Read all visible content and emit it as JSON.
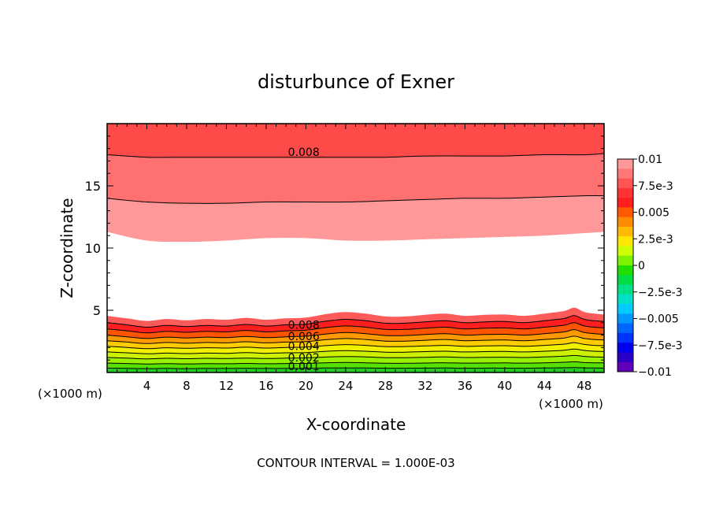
{
  "chart_data": {
    "type": "heatmap",
    "title": "disturbunce of Exner",
    "xlabel": "X-coordinate",
    "ylabel": "Z-coordinate",
    "x_unit_label_left": "(×1000 m)",
    "x_unit_label_right": "(×1000 m)",
    "footer": "CONTOUR INTERVAL = 1.000E-03",
    "xlim": [
      0,
      50
    ],
    "ylim": [
      0,
      20
    ],
    "x_ticks": [
      4,
      8,
      12,
      16,
      20,
      24,
      28,
      32,
      36,
      40,
      44,
      48
    ],
    "x_tick_labels": [
      "4",
      "8",
      "12",
      "16",
      "20",
      "24",
      "28",
      "32",
      "36",
      "40",
      "44",
      "48"
    ],
    "y_ticks": [
      5,
      10,
      15
    ],
    "y_tick_labels": [
      "5",
      "10",
      "15"
    ],
    "contour_interval": 0.001,
    "contour_labels": [
      {
        "text": "0.008",
        "x": 18.2,
        "y": 17.4
      },
      {
        "text": "0.008",
        "x": 18.2,
        "y": 3.5
      },
      {
        "text": "0.006",
        "x": 18.2,
        "y": 2.6
      },
      {
        "text": "0.004",
        "x": 18.2,
        "y": 1.8
      },
      {
        "text": "0.002",
        "x": 18.2,
        "y": 0.9
      },
      {
        "text": "0.001",
        "x": 18.2,
        "y": 0.2
      }
    ],
    "upper_band": {
      "x": [
        0,
        4,
        8,
        12,
        16,
        20,
        24,
        28,
        32,
        36,
        40,
        44,
        48,
        50
      ],
      "level_values": [
        0.01,
        0.009,
        0.008,
        0.007
      ],
      "level_heights": [
        [
          11.3,
          10.6,
          10.5,
          10.6,
          10.8,
          10.8,
          10.6,
          10.6,
          10.7,
          10.8,
          10.9,
          11.0,
          11.2,
          11.3
        ],
        [
          14.0,
          13.7,
          13.6,
          13.6,
          13.7,
          13.7,
          13.7,
          13.8,
          13.9,
          14.0,
          14.0,
          14.1,
          14.2,
          14.2
        ],
        [
          17.5,
          17.3,
          17.3,
          17.3,
          17.3,
          17.3,
          17.3,
          17.3,
          17.4,
          17.4,
          17.4,
          17.5,
          17.5,
          17.6
        ],
        [
          20,
          20,
          20,
          20,
          20,
          20,
          20,
          20,
          20,
          20,
          20,
          20,
          20,
          20
        ]
      ]
    },
    "lower_band": {
      "x": [
        0,
        2,
        4,
        6,
        8,
        10,
        12,
        14,
        16,
        18,
        20,
        22,
        24,
        26,
        28,
        30,
        32,
        34,
        36,
        38,
        40,
        42,
        44,
        46,
        47,
        48,
        49,
        50
      ],
      "level_values": [
        0.001,
        0.002,
        0.003,
        0.004,
        0.005,
        0.006,
        0.007,
        0.008,
        0.009,
        0.01
      ],
      "level_heights": [
        [
          0.35,
          0.33,
          0.31,
          0.33,
          0.31,
          0.33,
          0.32,
          0.34,
          0.32,
          0.33,
          0.33,
          0.36,
          0.37,
          0.36,
          0.34,
          0.34,
          0.35,
          0.36,
          0.34,
          0.35,
          0.35,
          0.34,
          0.36,
          0.38,
          0.4,
          0.37,
          0.36,
          0.35
        ],
        [
          0.75,
          0.72,
          0.68,
          0.71,
          0.69,
          0.71,
          0.7,
          0.73,
          0.7,
          0.72,
          0.73,
          0.78,
          0.81,
          0.78,
          0.74,
          0.74,
          0.76,
          0.78,
          0.75,
          0.76,
          0.77,
          0.75,
          0.78,
          0.82,
          0.86,
          0.8,
          0.78,
          0.77
        ],
        [
          1.2,
          1.15,
          1.09,
          1.14,
          1.11,
          1.14,
          1.12,
          1.16,
          1.12,
          1.15,
          1.17,
          1.24,
          1.28,
          1.25,
          1.19,
          1.19,
          1.22,
          1.25,
          1.2,
          1.22,
          1.23,
          1.2,
          1.25,
          1.31,
          1.37,
          1.29,
          1.25,
          1.23
        ],
        [
          1.65,
          1.58,
          1.5,
          1.56,
          1.52,
          1.56,
          1.54,
          1.6,
          1.54,
          1.58,
          1.6,
          1.7,
          1.76,
          1.71,
          1.63,
          1.63,
          1.68,
          1.71,
          1.65,
          1.68,
          1.69,
          1.65,
          1.71,
          1.79,
          1.88,
          1.77,
          1.71,
          1.69
        ],
        [
          2.1,
          2.01,
          1.91,
          1.99,
          1.94,
          1.99,
          1.96,
          2.03,
          1.96,
          2.01,
          2.04,
          2.16,
          2.24,
          2.18,
          2.08,
          2.08,
          2.13,
          2.18,
          2.1,
          2.13,
          2.15,
          2.1,
          2.18,
          2.28,
          2.4,
          2.25,
          2.18,
          2.15
        ],
        [
          2.55,
          2.44,
          2.32,
          2.41,
          2.35,
          2.41,
          2.38,
          2.47,
          2.38,
          2.44,
          2.48,
          2.63,
          2.73,
          2.65,
          2.52,
          2.52,
          2.59,
          2.65,
          2.55,
          2.59,
          2.61,
          2.55,
          2.65,
          2.77,
          2.92,
          2.73,
          2.65,
          2.61
        ],
        [
          3.0,
          2.87,
          2.73,
          2.84,
          2.77,
          2.84,
          2.8,
          2.9,
          2.8,
          2.87,
          2.92,
          3.09,
          3.21,
          3.12,
          2.97,
          2.97,
          3.05,
          3.12,
          3.0,
          3.05,
          3.07,
          3.0,
          3.12,
          3.26,
          3.44,
          3.21,
          3.12,
          3.07
        ],
        [
          3.5,
          3.35,
          3.18,
          3.31,
          3.23,
          3.31,
          3.26,
          3.38,
          3.26,
          3.35,
          3.4,
          3.61,
          3.74,
          3.64,
          3.46,
          3.46,
          3.56,
          3.64,
          3.5,
          3.56,
          3.58,
          3.5,
          3.64,
          3.8,
          4.0,
          3.74,
          3.64,
          3.58
        ],
        [
          4.0,
          3.83,
          3.64,
          3.78,
          3.69,
          3.78,
          3.73,
          3.86,
          3.73,
          3.83,
          3.88,
          4.12,
          4.27,
          4.16,
          3.96,
          3.96,
          4.07,
          4.16,
          4.0,
          4.07,
          4.1,
          4.0,
          4.16,
          4.34,
          4.57,
          4.27,
          4.16,
          4.1
        ],
        [
          4.55,
          4.35,
          4.14,
          4.3,
          4.19,
          4.3,
          4.24,
          4.39,
          4.24,
          4.35,
          4.41,
          4.69,
          4.86,
          4.73,
          4.5,
          4.5,
          4.63,
          4.73,
          4.55,
          4.63,
          4.66,
          4.55,
          4.73,
          4.94,
          5.2,
          4.86,
          4.73,
          4.66
        ]
      ]
    },
    "colorbar": {
      "tick_labels": [
        "0.01",
        "7.5e-3",
        "0.005",
        "2.5e-3",
        "0",
        "−2.5e-3",
        "−0.005",
        "−7.5e-3",
        "−0.01"
      ],
      "colors_top_to_bottom": [
        "#ff9999",
        "#ff7777",
        "#ff5555",
        "#ff3333",
        "#ff1f1f",
        "#ff5a00",
        "#ff8c00",
        "#ffbb00",
        "#ffe800",
        "#ccff00",
        "#7cf200",
        "#22dd00",
        "#00dd44",
        "#00e088",
        "#00e0c8",
        "#00ccff",
        "#0099ff",
        "#0066ff",
        "#0033ff",
        "#0000ee",
        "#2a00c8",
        "#6000bb"
      ]
    },
    "band_colors": {
      "0": "#22cc22",
      "0.001": "#55e000",
      "0.002": "#99f000",
      "0.003": "#ccf000",
      "0.004": "#f0f000",
      "0.005": "#ffcc00",
      "0.006": "#ff9900",
      "0.007": "#ff5500",
      "0.008": "#ff1f1f",
      "0.009": "#ff5a5a",
      "0.01": "#ff9999"
    },
    "upper_band_colors": [
      "#ff9999",
      "#ff7070",
      "#ff4a4a",
      "#ff1f1f"
    ],
    "grid": false
  }
}
